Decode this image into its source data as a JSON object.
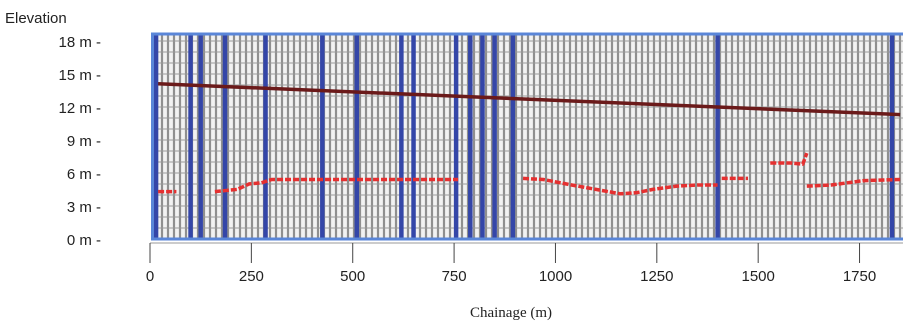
{
  "chart_data": {
    "type": "line",
    "ylabel": "Elevation",
    "xlabel": "Chainage (m)",
    "xlim": [
      0,
      1850
    ],
    "ylim": [
      0,
      18
    ],
    "x_ticks": [
      0,
      250,
      500,
      750,
      1000,
      1250,
      1500,
      1750
    ],
    "y_ticks": [
      {
        "value": 0,
        "label": "0 m -"
      },
      {
        "value": 3,
        "label": "3 m -"
      },
      {
        "value": 6,
        "label": "6 m -"
      },
      {
        "value": 9,
        "label": "9 m -"
      },
      {
        "value": 12,
        "label": "12 m -"
      },
      {
        "value": 15,
        "label": "15 m -"
      },
      {
        "value": 18,
        "label": "18 m -"
      }
    ],
    "grid": true,
    "series": [
      {
        "style": "solid",
        "color": "#6b1a1a",
        "points": [
          [
            20,
            14.2
          ],
          [
            1850,
            11.4
          ]
        ]
      },
      {
        "style": "dashed",
        "color": "#e53030",
        "segments": [
          [
            [
              20,
              4.4
            ],
            [
              65,
              4.4
            ]
          ],
          [
            [
              160,
              4.4
            ],
            [
              215,
              4.6
            ],
            [
              245,
              5.1
            ],
            [
              275,
              5.2
            ],
            [
              300,
              5.5
            ],
            [
              760,
              5.5
            ]
          ],
          [
            [
              920,
              5.6
            ],
            [
              970,
              5.5
            ],
            [
              1040,
              5.0
            ],
            [
              1100,
              4.6
            ],
            [
              1160,
              4.2
            ],
            [
              1200,
              4.3
            ],
            [
              1240,
              4.6
            ],
            [
              1300,
              4.9
            ],
            [
              1350,
              5.0
            ],
            [
              1400,
              5.0
            ]
          ],
          [
            [
              1410,
              5.6
            ],
            [
              1475,
              5.6
            ]
          ],
          [
            [
              1530,
              7.0
            ],
            [
              1580,
              7.0
            ],
            [
              1610,
              6.9
            ],
            [
              1620,
              7.9
            ]
          ],
          [
            [
              1620,
              4.9
            ],
            [
              1680,
              5.0
            ],
            [
              1720,
              5.2
            ],
            [
              1760,
              5.4
            ],
            [
              1850,
              5.5
            ]
          ]
        ]
      }
    ],
    "vertical_markers": [
      15,
      100,
      125,
      185,
      285,
      425,
      510,
      620,
      650,
      755,
      790,
      820,
      850,
      895,
      1400,
      1830
    ]
  }
}
